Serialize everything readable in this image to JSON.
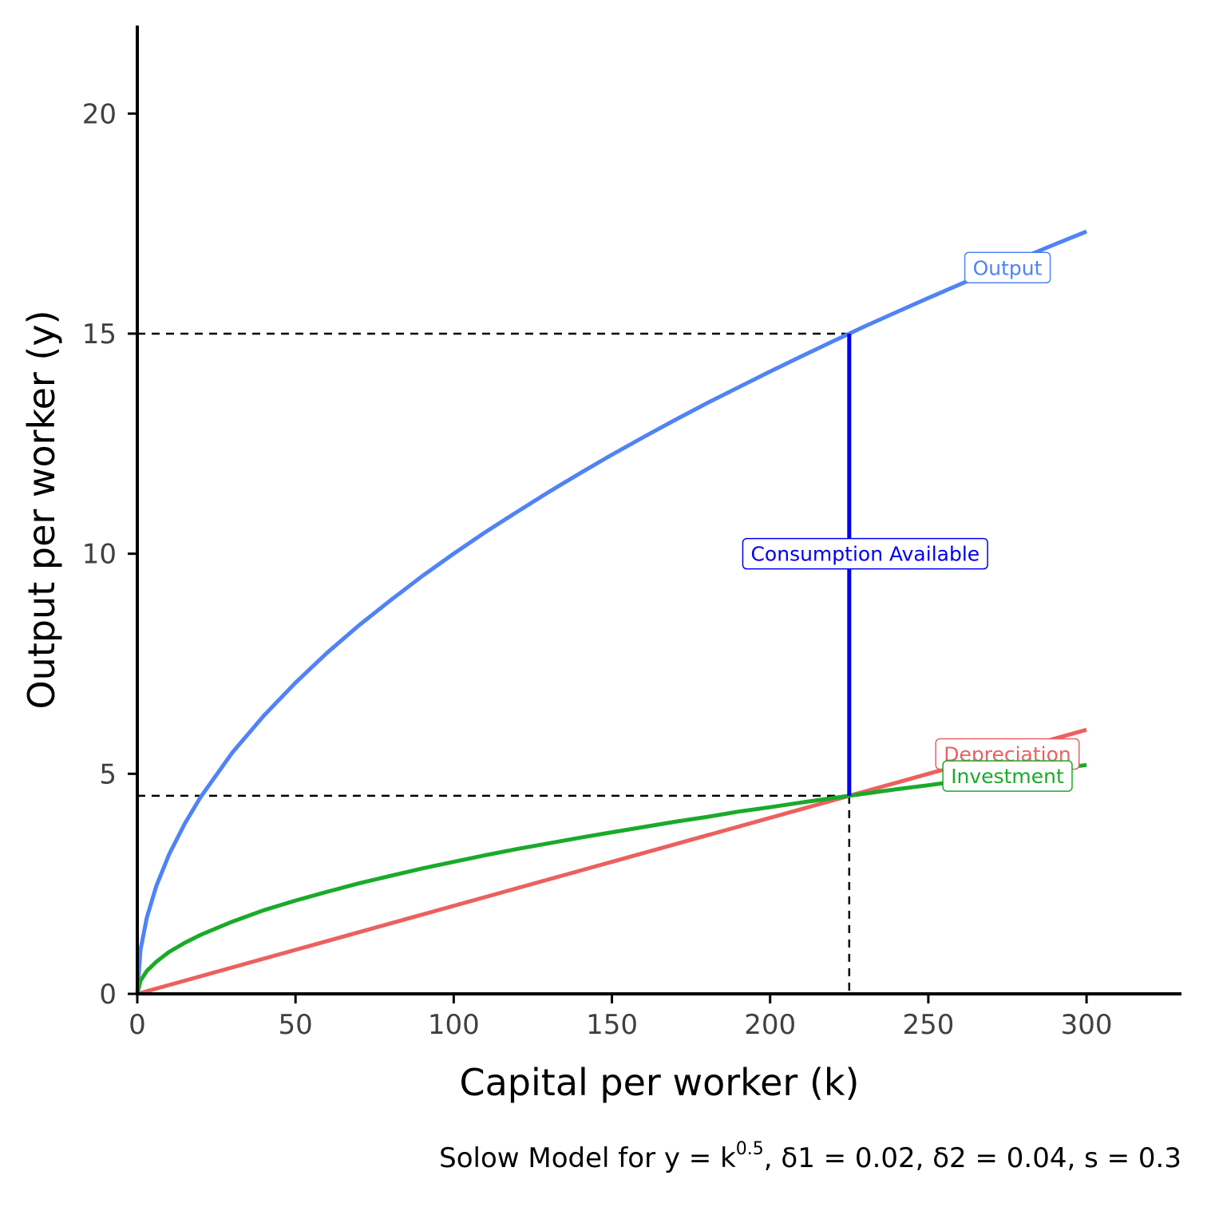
{
  "chart_data": {
    "type": "line",
    "xlabel": "Capital per worker (k)",
    "ylabel": "Output per worker (y)",
    "xlim": [
      0,
      330
    ],
    "ylim": [
      0,
      22
    ],
    "x_ticks": [
      0,
      50,
      100,
      150,
      200,
      250,
      300
    ],
    "y_ticks": [
      0,
      5,
      10,
      15,
      20
    ],
    "grid": false,
    "caption": {
      "text": "Solow Model for y = k",
      "sup": "0.5",
      "rest": ", δ1 = 0.02, δ2 = 0.04, s = 0.3"
    },
    "series": [
      {
        "name": "Output",
        "color": "#4f83f6",
        "x": [
          0,
          1,
          3,
          6,
          10,
          15,
          20,
          30,
          40,
          50,
          60,
          70,
          80,
          90,
          100,
          110,
          120,
          130,
          140,
          150,
          160,
          170,
          180,
          190,
          200,
          210,
          220,
          225,
          230,
          240,
          250,
          260,
          270,
          280,
          290,
          300
        ],
        "y": [
          0,
          1,
          1.73,
          2.45,
          3.16,
          3.87,
          4.47,
          5.48,
          6.32,
          7.07,
          7.75,
          8.37,
          8.94,
          9.49,
          10,
          10.49,
          10.95,
          11.4,
          11.83,
          12.25,
          12.65,
          13.04,
          13.42,
          13.78,
          14.14,
          14.49,
          14.83,
          15,
          15.17,
          15.49,
          15.81,
          16.12,
          16.43,
          16.73,
          17.03,
          17.32
        ]
      },
      {
        "name": "Depreciation",
        "color": "#ec6060",
        "x": [
          0,
          300
        ],
        "y": [
          0,
          6
        ]
      },
      {
        "name": "Investment",
        "color": "#1aaa2a",
        "x": [
          0,
          1,
          3,
          6,
          10,
          15,
          20,
          30,
          40,
          50,
          60,
          70,
          80,
          90,
          100,
          110,
          120,
          130,
          140,
          150,
          160,
          170,
          180,
          190,
          200,
          210,
          220,
          225,
          230,
          240,
          250,
          260,
          270,
          280,
          290,
          300
        ],
        "y": [
          0,
          0.3,
          0.52,
          0.73,
          0.95,
          1.16,
          1.34,
          1.64,
          1.9,
          2.12,
          2.32,
          2.51,
          2.68,
          2.85,
          3,
          3.15,
          3.29,
          3.42,
          3.55,
          3.67,
          3.79,
          3.91,
          4.02,
          4.14,
          4.24,
          4.35,
          4.45,
          4.5,
          4.55,
          4.65,
          4.74,
          4.84,
          4.93,
          5.02,
          5.11,
          5.2
        ]
      }
    ],
    "annotations": {
      "steady_state_k": 225,
      "steady_state_y": 15,
      "steady_state_investment": 4.5,
      "consumption_label": "Consumption Available",
      "consumption_color": "#0000ee",
      "consumption_label_y": 10,
      "line_labels": [
        {
          "text": "Output",
          "x": 275,
          "y": 16.5,
          "color": "#4f83f6"
        },
        {
          "text": "Depreciation",
          "x": 275,
          "y": 5.45,
          "color": "#ec6060"
        },
        {
          "text": "Investment",
          "x": 275,
          "y": 4.95,
          "color": "#1aaa2a"
        }
      ]
    }
  }
}
